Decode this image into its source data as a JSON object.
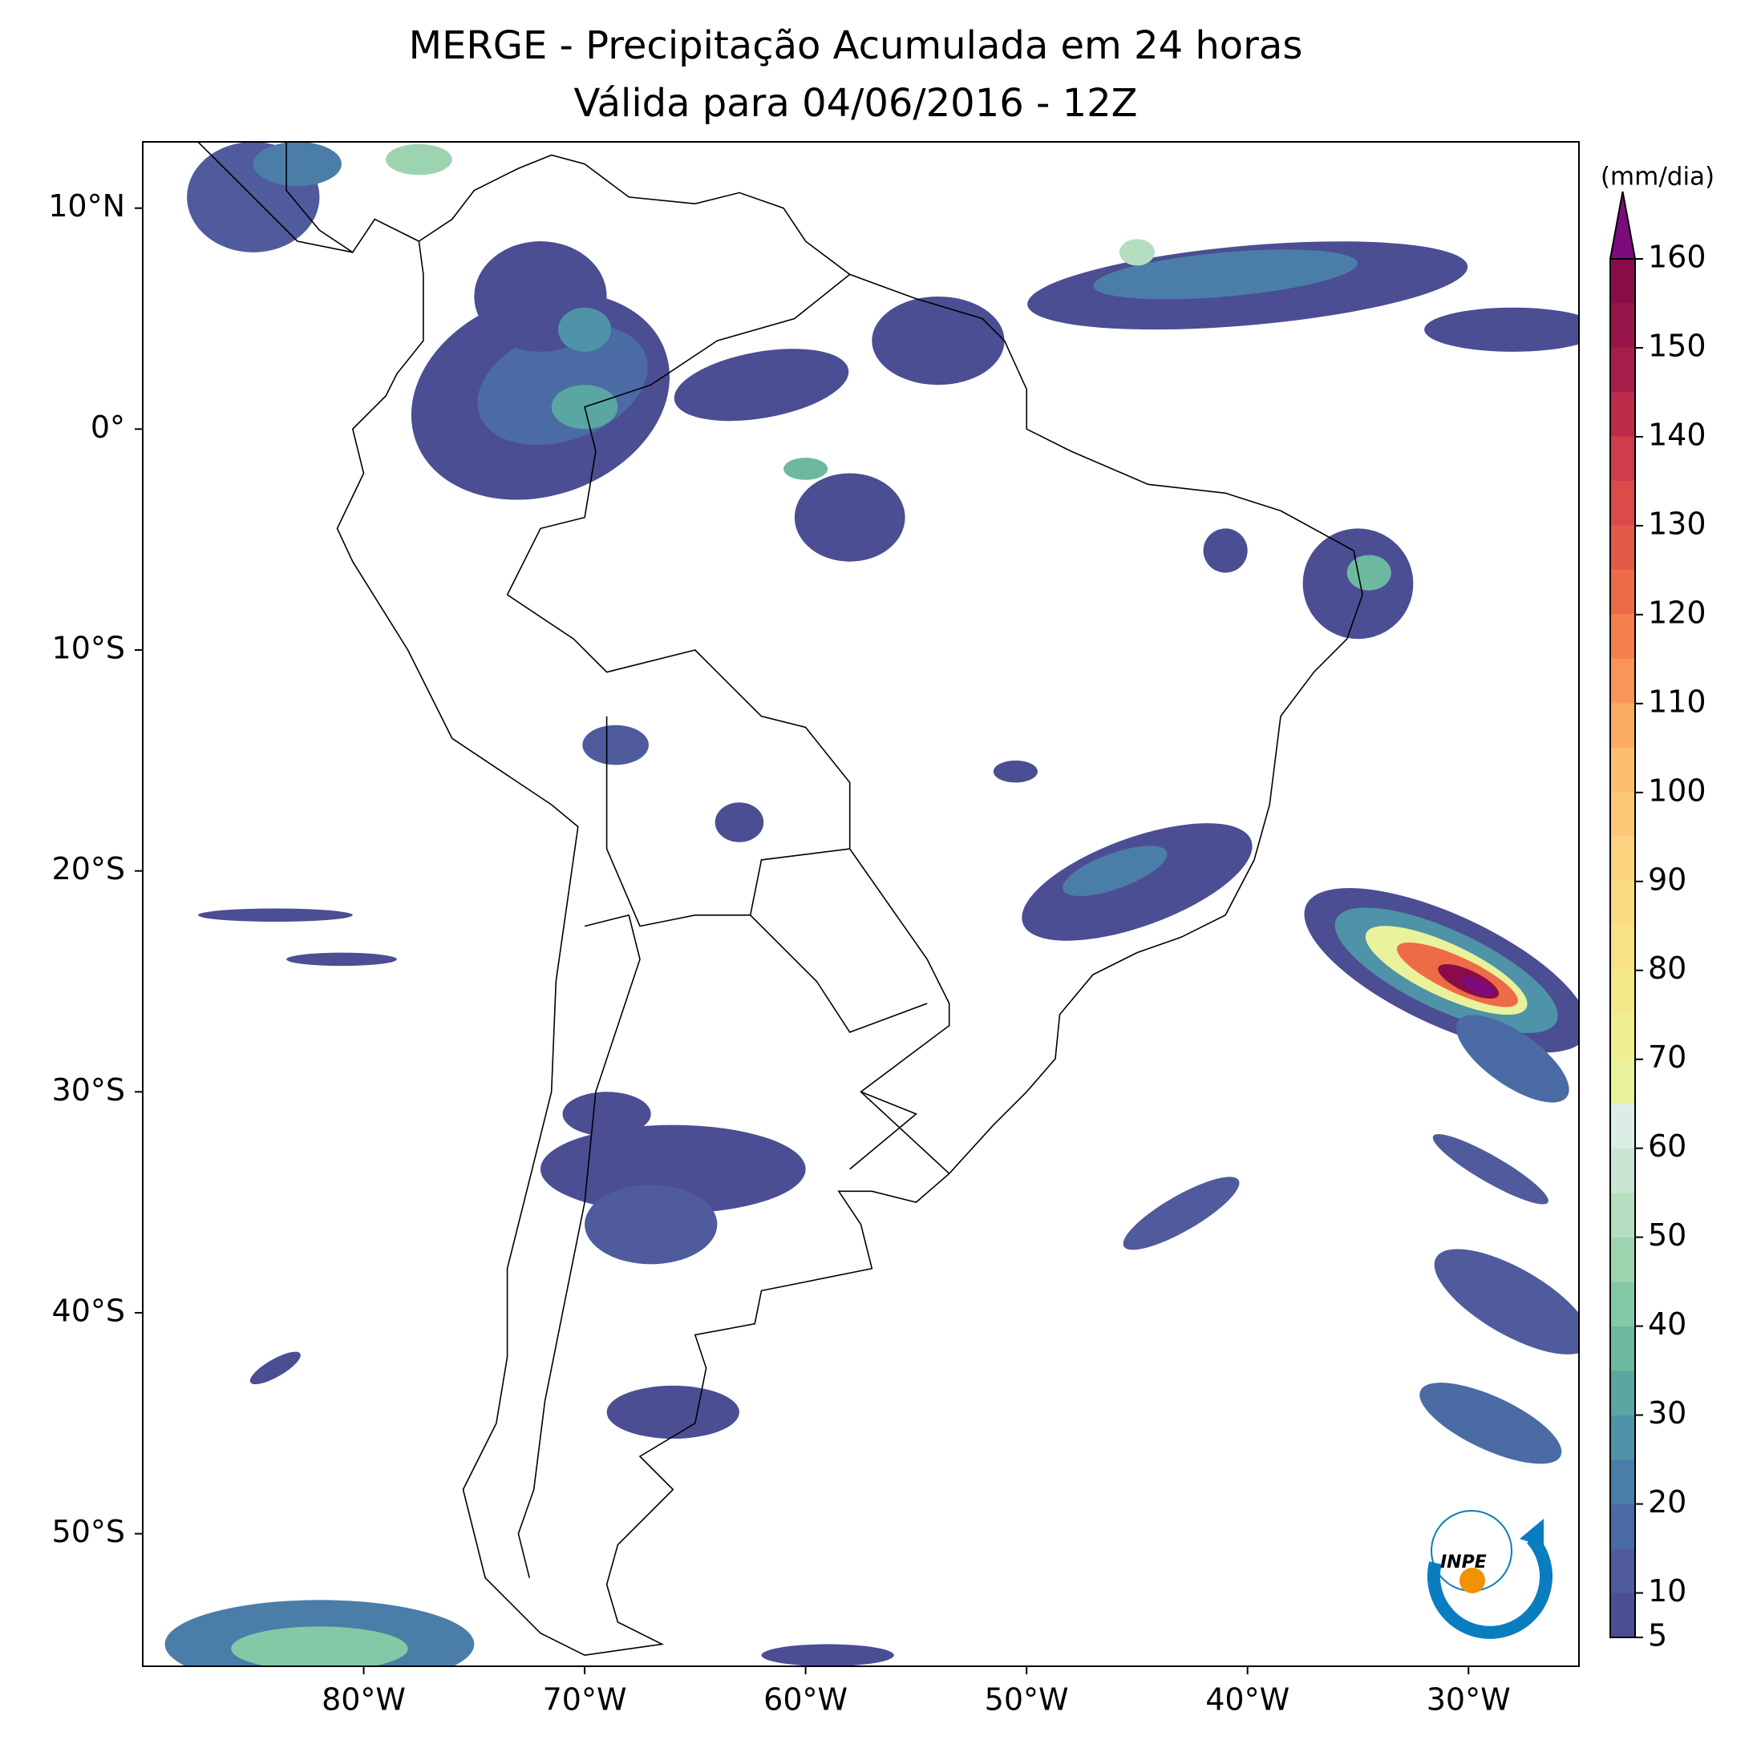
{
  "title": "MERGE - Precipitação Acumulada em 24 horas",
  "subtitle": "Válida para 04/06/2016 - 12Z",
  "map": {
    "xlim": [
      -90,
      -25
    ],
    "ylim": [
      -56,
      13
    ],
    "lon_ticks": [
      {
        "value": -80,
        "label": "80°W"
      },
      {
        "value": -70,
        "label": "70°W"
      },
      {
        "value": -60,
        "label": "60°W"
      },
      {
        "value": -50,
        "label": "50°W"
      },
      {
        "value": -40,
        "label": "40°W"
      },
      {
        "value": -30,
        "label": "30°W"
      }
    ],
    "lat_ticks": [
      {
        "value": 10,
        "label": "10°N"
      },
      {
        "value": 0,
        "label": "0°"
      },
      {
        "value": -10,
        "label": "10°S"
      },
      {
        "value": -20,
        "label": "20°S"
      },
      {
        "value": -30,
        "label": "30°S"
      },
      {
        "value": -40,
        "label": "40°S"
      },
      {
        "value": -50,
        "label": "50°S"
      }
    ]
  },
  "colorbar": {
    "label": "(mm/dia)",
    "lim": [
      5,
      160
    ],
    "step": 5,
    "ticks": [
      5,
      10,
      20,
      30,
      40,
      50,
      60,
      70,
      80,
      90,
      100,
      110,
      120,
      130,
      140,
      150,
      160
    ],
    "colors": [
      "#4b4e93",
      "#4f5b9c",
      "#4a6ba3",
      "#4a7ea8",
      "#4e93a8",
      "#5aa6a2",
      "#6cb9a0",
      "#83c9a6",
      "#9dd4b0",
      "#b5dec0",
      "#cae6d3",
      "#dcede5",
      "#e9f29a",
      "#eef08f",
      "#f3e98a",
      "#f7e287",
      "#fadb82",
      "#fcd37e",
      "#fdc979",
      "#fcbf70",
      "#fbac62",
      "#f99556",
      "#f6804c",
      "#ee6b48",
      "#e45a48",
      "#da4b4a",
      "#cf3c4b",
      "#bd2b4a",
      "#a71e4a",
      "#971548",
      "#8a0c47"
    ],
    "extend_color": "#7d0b7e"
  },
  "logo": "INPE"
}
